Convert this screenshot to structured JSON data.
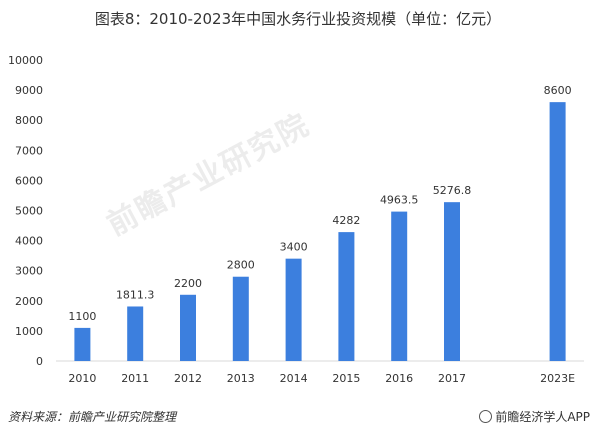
{
  "chart_data": {
    "type": "bar",
    "title": "图表8：2010-2023年中国水务行业投资规模（单位：亿元）",
    "categories": [
      "2010",
      "2011",
      "2012",
      "2013",
      "2014",
      "2015",
      "2016",
      "2017",
      "",
      "2023E"
    ],
    "values": [
      1100,
      1811.3,
      2200,
      2800,
      3400,
      4282,
      4963.5,
      5276.8,
      null,
      8600
    ],
    "data_labels": [
      "1100",
      "1811.3",
      "2200",
      "2800",
      "3400",
      "4282",
      "4963.5",
      "5276.8",
      "",
      "8600"
    ],
    "y_ticks": [
      "0",
      "1000",
      "2000",
      "3000",
      "4000",
      "5000",
      "6000",
      "7000",
      "8000",
      "9000",
      "10000"
    ],
    "ylim": [
      0,
      10000
    ],
    "bar_color": "#3C7FDE",
    "grid": false,
    "xlabel": "",
    "ylabel": ""
  },
  "watermark": "前瞻产业研究院",
  "source_text": "资料来源：前瞻产业研究院整理",
  "brand_text": "前瞻经济学人APP"
}
